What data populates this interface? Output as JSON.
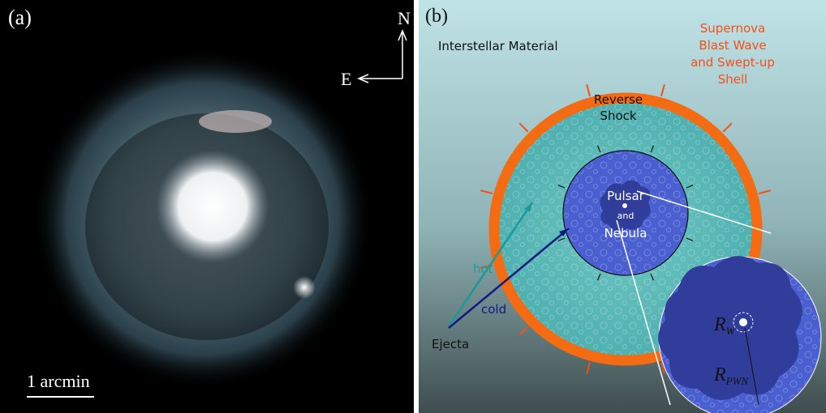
{
  "panel_a": {
    "label": "(a)",
    "compass_north": "N",
    "compass_east": "E",
    "scale_bar": "1 arcmin"
  },
  "panel_b": {
    "label": "(b)",
    "interstellar": "Interstellar Material",
    "blast_wave": [
      "Supernova",
      "Blast Wave",
      "and Swept-up",
      "Shell"
    ],
    "reverse_shock": [
      "Reverse",
      "Shock"
    ],
    "pulsar": [
      "Pulsar",
      "and",
      "Nebula"
    ],
    "hot": "hot",
    "cold": "cold",
    "ejecta": "Ejecta",
    "r_w": {
      "main": "R",
      "sub": "W"
    },
    "r_pwn": {
      "main": "R",
      "sub": "PWN"
    }
  }
}
